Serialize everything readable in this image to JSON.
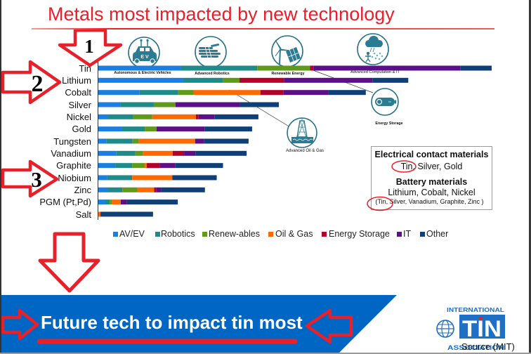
{
  "slide": {
    "title": "Metals most impacted by new technology",
    "title_color": "#e8202a"
  },
  "chart_data": {
    "type": "bar",
    "orientation": "horizontal",
    "stacked": true,
    "title": "Metals most impacted by new technology",
    "xlabel": "",
    "ylabel": "",
    "value_units": "relative impact (estimated, no axis scale shown; Tin total = 100)",
    "xlim": [
      0,
      100
    ],
    "x_ticks_shown": false,
    "grid": false,
    "legend_position": "bottom",
    "categories": [
      "Tin",
      "Lithium",
      "Cobalt",
      "Silver",
      "Nickel",
      "Gold",
      "Tungsten",
      "Vanadium",
      "Graphite",
      "Niobium",
      "Zinc",
      "PGM (Pt,Pd)",
      "Salt"
    ],
    "series": [
      {
        "name": "AV/EV",
        "color": "#1a7fe0",
        "values": [
          20.9,
          21.6,
          10.5,
          5.7,
          2.5,
          5.9,
          2.1,
          4.6,
          4.3,
          2.3,
          2.5,
          1.6,
          0
        ]
      },
      {
        "name": "Robotics",
        "color": "#1f8a8a",
        "values": [
          19.5,
          10.0,
          9.8,
          8.4,
          6.4,
          5.9,
          6.6,
          4.8,
          4.3,
          6.3,
          3.6,
          1.3,
          0
        ]
      },
      {
        "name": "Renew-ables",
        "color": "#5f9a1a",
        "values": [
          13.4,
          4.3,
          3.9,
          5.5,
          4.8,
          3.0,
          1.6,
          2.0,
          3.2,
          0,
          3.8,
          0.5,
          0
        ]
      },
      {
        "name": "Oil & Gas",
        "color": "#ff6a00",
        "values": [
          0,
          0,
          17.0,
          0,
          11.1,
          0,
          14.3,
          7.5,
          0.5,
          10.2,
          4.3,
          2.3,
          0.5
        ]
      },
      {
        "name": "Energy Storage",
        "color": "#b5002a",
        "values": [
          0.9,
          11.3,
          5.9,
          0,
          0.7,
          0,
          0,
          2.9,
          3.4,
          0,
          0.5,
          0,
          0.2
        ]
      },
      {
        "name": "IT",
        "color": "#5d0f8a",
        "values": [
          37.3,
          22.5,
          11.3,
          16.3,
          4.1,
          12.3,
          2.3,
          2.9,
          3.9,
          0,
          1.3,
          1.6,
          0
        ]
      },
      {
        "name": "Other",
        "color": "#0f3f78",
        "values": [
          8.0,
          9.1,
          9.6,
          10.0,
          11.1,
          12.0,
          11.3,
          13.0,
          12.1,
          11.3,
          11.1,
          12.9,
          13.2
        ]
      }
    ]
  },
  "technologies": [
    {
      "icon": "electric-vehicle-icon",
      "label": "Autonomous & Electric Vehicles",
      "badge": "E V"
    },
    {
      "icon": "robotic-hand-icon",
      "label": "Advanced Robotics"
    },
    {
      "icon": "wind-solar-icon",
      "label": "Renewable Energy"
    },
    {
      "icon": "cloud-computing-icon",
      "label": "Advanced Computation & IT"
    },
    {
      "icon": "battery-icon",
      "label": "Energy Storage"
    },
    {
      "icon": "oil-rig-icon",
      "label": "Advanced Oil & Gas"
    }
  ],
  "info_box": {
    "heading_1": "Electrical contact materials",
    "line_1": "Tin, Silver, Gold",
    "heading_2": "Battery materials",
    "line_2": "Lithium, Cobalt, Nickel",
    "line_3": "(Tin, Silver, Vanadium, Graphite, Zinc )",
    "highlighted_word": "Tin,"
  },
  "callouts": {
    "arrow_1": "1",
    "arrow_2": "2",
    "arrow_3": "3",
    "color": "#e8202a"
  },
  "banner": {
    "text": "Future tech to impact tin most",
    "color": "#0066c4"
  },
  "logo": {
    "top": "INTERNATIONAL",
    "middle": "TIN",
    "bottom": "ASSOCIATION"
  },
  "source": "Source (MIT)"
}
